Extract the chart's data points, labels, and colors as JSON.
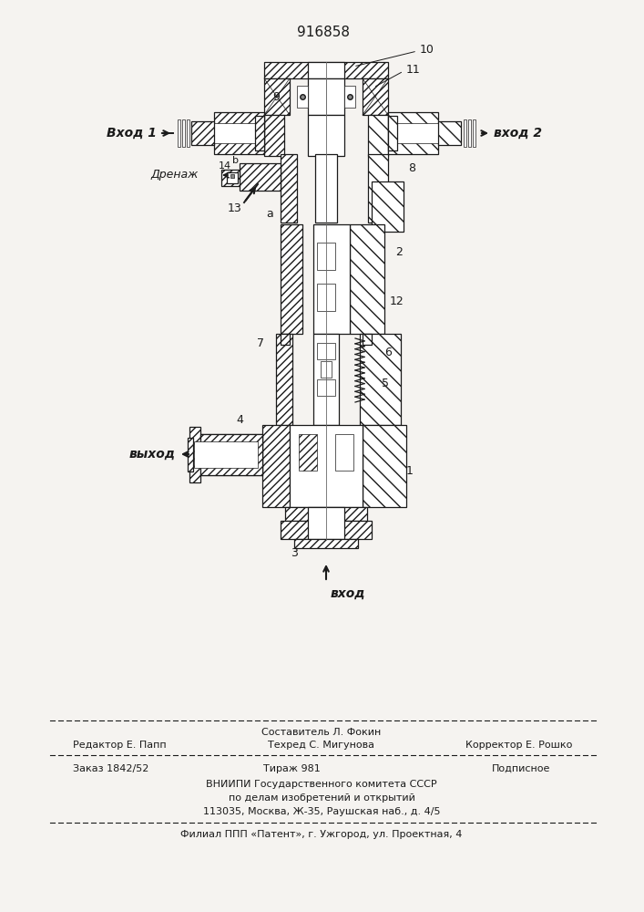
{
  "patent_number": "916858",
  "bg_color": "#f5f3f0",
  "lc": "#1a1a1a",
  "fig_w": 7.07,
  "fig_h": 10.0,
  "dpi": 100,
  "footer": {
    "l1c": "Составитель Л. Фокин",
    "l2l": "Редактор Е. Папп",
    "l2c": "Техред С. Мигунова",
    "l2r": "Корректор Е. Рошко",
    "l3l": "Заказ 1842/52",
    "l3c": "Тираж 981",
    "l3r": "Подписное",
    "l4": "ВНИИПИ Государственного комитета СССР",
    "l5": "по делам изобретений и открытий",
    "l6": "113035, Москва, Ж-35, Раушская наб., д. 4/5",
    "l7": "Филиал ППП «Патент», г. Ужгород, ул. Проектная, 4"
  },
  "labels": {
    "vhod1": "Вход 1",
    "vhod2": "вход 2",
    "vyhod": "выход",
    "vhod_bot": "вход",
    "drenazh": "Дренаж"
  }
}
